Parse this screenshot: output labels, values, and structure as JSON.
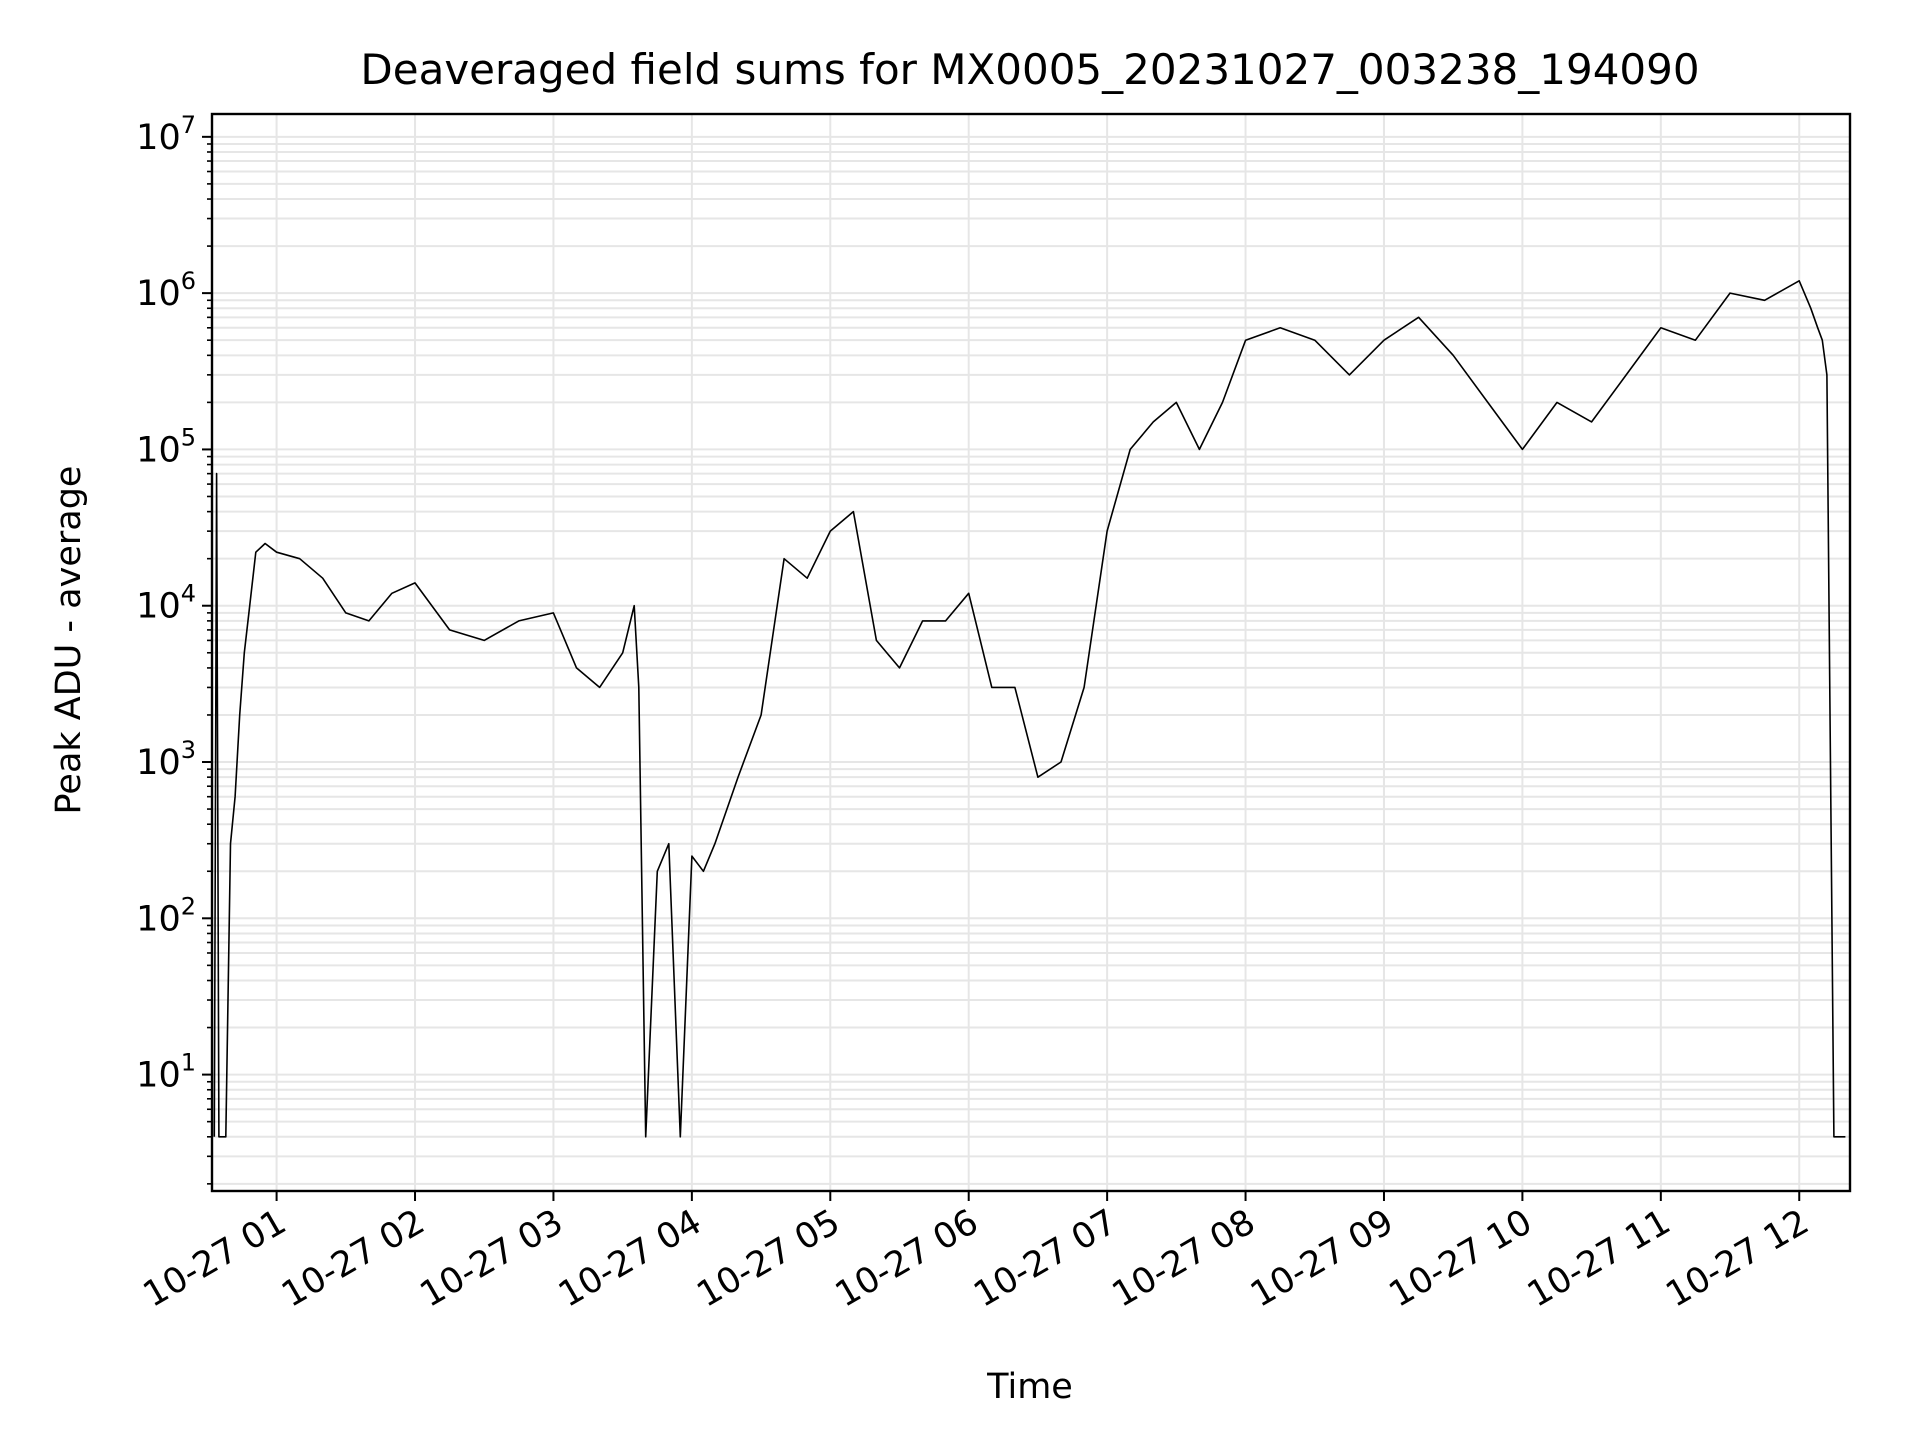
{
  "chart_data": {
    "type": "line",
    "title": "Deaveraged field sums for MX0005_20231027_003238_194090",
    "xlabel": "Time",
    "ylabel": "Peak ADU - average",
    "yscale": "log",
    "grid": true,
    "line_color": "#000000",
    "grid_color": "#e6e6e6",
    "xlim": [
      "2023-10-27 00:32",
      "2023-10-27 12:22"
    ],
    "ylim": [
      1.8,
      14000000
    ],
    "x_ticks": [
      {
        "time": "2023-10-27 01:00",
        "label": "10-27 01"
      },
      {
        "time": "2023-10-27 02:00",
        "label": "10-27 02"
      },
      {
        "time": "2023-10-27 03:00",
        "label": "10-27 03"
      },
      {
        "time": "2023-10-27 04:00",
        "label": "10-27 04"
      },
      {
        "time": "2023-10-27 05:00",
        "label": "10-27 05"
      },
      {
        "time": "2023-10-27 06:00",
        "label": "10-27 06"
      },
      {
        "time": "2023-10-27 07:00",
        "label": "10-27 07"
      },
      {
        "time": "2023-10-27 08:00",
        "label": "10-27 08"
      },
      {
        "time": "2023-10-27 09:00",
        "label": "10-27 09"
      },
      {
        "time": "2023-10-27 10:00",
        "label": "10-27 10"
      },
      {
        "time": "2023-10-27 11:00",
        "label": "10-27 11"
      },
      {
        "time": "2023-10-27 12:00",
        "label": "10-27 12"
      }
    ],
    "y_ticks": [
      {
        "value": 10,
        "base": "10",
        "exp": "1"
      },
      {
        "value": 100,
        "base": "10",
        "exp": "2"
      },
      {
        "value": 1000,
        "base": "10",
        "exp": "3"
      },
      {
        "value": 10000,
        "base": "10",
        "exp": "4"
      },
      {
        "value": 100000,
        "base": "10",
        "exp": "5"
      },
      {
        "value": 1000000,
        "base": "10",
        "exp": "6"
      },
      {
        "value": 10000000,
        "base": "10",
        "exp": "7"
      }
    ],
    "series": [
      {
        "x": [
          "2023-10-27 00:33",
          "2023-10-27 00:34",
          "2023-10-27 00:35",
          "2023-10-27 00:36",
          "2023-10-27 00:38",
          "2023-10-27 00:40",
          "2023-10-27 00:42",
          "2023-10-27 00:44",
          "2023-10-27 00:46",
          "2023-10-27 00:48",
          "2023-10-27 00:51",
          "2023-10-27 00:55",
          "2023-10-27 01:00",
          "2023-10-27 01:10",
          "2023-10-27 01:20",
          "2023-10-27 01:30",
          "2023-10-27 01:40",
          "2023-10-27 01:50",
          "2023-10-27 02:00",
          "2023-10-27 02:15",
          "2023-10-27 02:30",
          "2023-10-27 02:45",
          "2023-10-27 03:00",
          "2023-10-27 03:10",
          "2023-10-27 03:20",
          "2023-10-27 03:30",
          "2023-10-27 03:35",
          "2023-10-27 03:37",
          "2023-10-27 03:40",
          "2023-10-27 03:45",
          "2023-10-27 03:50",
          "2023-10-27 03:55",
          "2023-10-27 04:00",
          "2023-10-27 04:05",
          "2023-10-27 04:10",
          "2023-10-27 04:20",
          "2023-10-27 04:30",
          "2023-10-27 04:40",
          "2023-10-27 04:50",
          "2023-10-27 05:00",
          "2023-10-27 05:10",
          "2023-10-27 05:20",
          "2023-10-27 05:30",
          "2023-10-27 05:40",
          "2023-10-27 05:50",
          "2023-10-27 06:00",
          "2023-10-27 06:10",
          "2023-10-27 06:20",
          "2023-10-27 06:30",
          "2023-10-27 06:40",
          "2023-10-27 06:50",
          "2023-10-27 07:00",
          "2023-10-27 07:10",
          "2023-10-27 07:20",
          "2023-10-27 07:30",
          "2023-10-27 07:40",
          "2023-10-27 07:50",
          "2023-10-27 08:00",
          "2023-10-27 08:15",
          "2023-10-27 08:30",
          "2023-10-27 08:45",
          "2023-10-27 09:00",
          "2023-10-27 09:15",
          "2023-10-27 09:30",
          "2023-10-27 09:45",
          "2023-10-27 10:00",
          "2023-10-27 10:15",
          "2023-10-27 10:30",
          "2023-10-27 10:45",
          "2023-10-27 11:00",
          "2023-10-27 11:15",
          "2023-10-27 11:30",
          "2023-10-27 11:45",
          "2023-10-27 12:00",
          "2023-10-27 12:05",
          "2023-10-27 12:08",
          "2023-10-27 12:10",
          "2023-10-27 12:12",
          "2023-10-27 12:15",
          "2023-10-27 12:20"
        ],
        "y": [
          4,
          70000,
          4,
          4,
          4,
          300,
          600,
          2000,
          5000,
          9000,
          22000,
          25000,
          22000,
          20000,
          15000,
          9000,
          8000,
          12000,
          14000,
          7000,
          6000,
          8000,
          9000,
          4000,
          3000,
          5000,
          10000,
          3000,
          4,
          200,
          300,
          4,
          250,
          200,
          300,
          800,
          2000,
          20000,
          15000,
          30000,
          40000,
          6000,
          4000,
          8000,
          8000,
          12000,
          3000,
          3000,
          800,
          1000,
          3000,
          30000,
          100000,
          150000,
          200000,
          100000,
          200000,
          500000,
          600000,
          500000,
          300000,
          500000,
          700000,
          400000,
          200000,
          100000,
          200000,
          150000,
          300000,
          600000,
          500000,
          1000000,
          900000,
          1200000,
          800000,
          600000,
          500000,
          300000,
          4,
          4
        ]
      }
    ]
  }
}
